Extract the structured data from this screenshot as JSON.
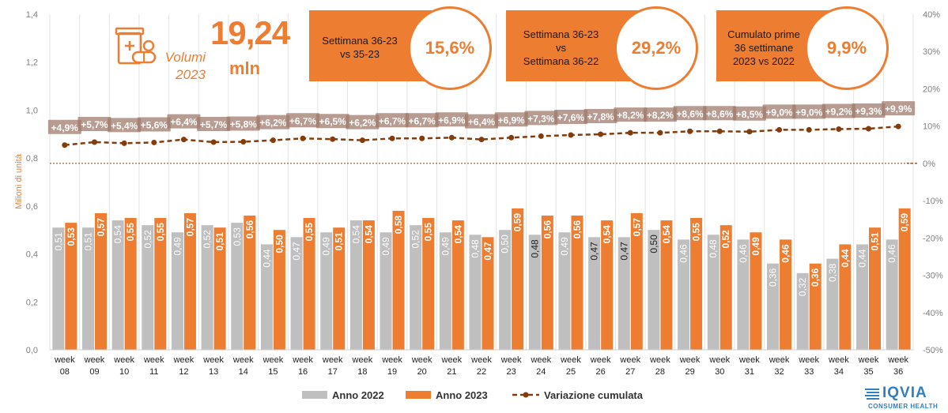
{
  "header": {
    "volume_value": "19,24",
    "volume_unit": "mln",
    "volume_label_line1": "Volumi",
    "volume_label_line2": "2023",
    "icon": "medicine-box-icon"
  },
  "kpis": [
    {
      "label_lines": [
        "Settimana 36-23",
        "vs 35-23"
      ],
      "value": "15,6%"
    },
    {
      "label_lines": [
        "Settimana 36-23",
        "vs",
        "Settimana 36-22"
      ],
      "value": "29,2%"
    },
    {
      "label_lines": [
        "Cumulato prime",
        "36 settimane",
        "2023 vs 2022"
      ],
      "value": "9,9%"
    }
  ],
  "logo": {
    "name": "IQVIA",
    "sub": "CONSUMER HEALTH"
  },
  "colors": {
    "series_2022": "#bfbfbf",
    "series_2023": "#ed7d31",
    "line": "#843c0c",
    "accent": "#ed7d31"
  },
  "chart_data": {
    "type": "bar",
    "ylabel": "Milioni di unità",
    "ylim": [
      0,
      1.4
    ],
    "y_ticks": [
      "0,0",
      "0,2",
      "0,4",
      "0,6",
      "0,8",
      "1,0",
      "1,2",
      "1,4"
    ],
    "y2lim": [
      -50,
      40
    ],
    "y2_ticks": [
      "-50%",
      "-40%",
      "-30%",
      "-20%",
      "-10%",
      "0%",
      "10%",
      "20%",
      "30%",
      "40%"
    ],
    "categories": [
      [
        "week",
        "08"
      ],
      [
        "week",
        "09"
      ],
      [
        "week",
        "10"
      ],
      [
        "week",
        "11"
      ],
      [
        "week",
        "12"
      ],
      [
        "week",
        "13"
      ],
      [
        "week",
        "14"
      ],
      [
        "week",
        "15"
      ],
      [
        "week",
        "16"
      ],
      [
        "week",
        "17"
      ],
      [
        "week",
        "18"
      ],
      [
        "week",
        "19"
      ],
      [
        "week",
        "20"
      ],
      [
        "week",
        "21"
      ],
      [
        "week",
        "22"
      ],
      [
        "week",
        "23"
      ],
      [
        "week",
        "24"
      ],
      [
        "week",
        "25"
      ],
      [
        "week",
        "26"
      ],
      [
        "week",
        "27"
      ],
      [
        "week",
        "28"
      ],
      [
        "week",
        "29"
      ],
      [
        "week",
        "30"
      ],
      [
        "week",
        "31"
      ],
      [
        "week",
        "32"
      ],
      [
        "week",
        "33"
      ],
      [
        "week",
        "34"
      ],
      [
        "week",
        "35"
      ],
      [
        "week",
        "36"
      ]
    ],
    "series": [
      {
        "name": "Anno 2022",
        "values": [
          0.51,
          0.51,
          0.54,
          0.52,
          0.49,
          0.52,
          0.53,
          0.44,
          0.47,
          0.49,
          0.54,
          0.49,
          0.52,
          0.49,
          0.48,
          0.5,
          0.48,
          0.49,
          0.47,
          0.47,
          0.5,
          0.46,
          0.48,
          0.46,
          0.36,
          0.32,
          0.38,
          0.44,
          0.46
        ],
        "labels": [
          "0,51",
          "0,51",
          "0,54",
          "0,52",
          "0,49",
          "0,52",
          "0,53",
          "0,44",
          "0,47",
          "0,49",
          "0,54",
          "0,49",
          "0,52",
          "0,49",
          "0,48",
          "0,50",
          "0,48",
          "0,49",
          "0,47",
          "0,47",
          "0,50",
          "0,46",
          "0,48",
          "0,46",
          "0,36",
          "0,32",
          "0,38",
          "0,44",
          "0,46"
        ]
      },
      {
        "name": "Anno 2023",
        "values": [
          0.53,
          0.57,
          0.55,
          0.55,
          0.57,
          0.51,
          0.56,
          0.5,
          0.55,
          0.51,
          0.54,
          0.58,
          0.55,
          0.54,
          0.47,
          0.59,
          0.56,
          0.56,
          0.54,
          0.57,
          0.54,
          0.55,
          0.52,
          0.49,
          0.46,
          0.36,
          0.44,
          0.51,
          0.59
        ],
        "labels": [
          "0,53",
          "0,57",
          "0,55",
          "0,55",
          "0,57",
          "0,51",
          "0,56",
          "0,50",
          "0,55",
          "0,51",
          "0,54",
          "0,58",
          "0,55",
          "0,54",
          "0,47",
          "0,59",
          "0,56",
          "0,56",
          "0,54",
          "0,57",
          "0,54",
          "0,55",
          "0,52",
          "0,49",
          "0,46",
          "0,36",
          "0,44",
          "0,51",
          "0,59"
        ]
      },
      {
        "name": "Variazione cumulata",
        "axis": "right",
        "values": [
          4.9,
          5.7,
          5.4,
          5.6,
          6.4,
          5.7,
          5.8,
          6.2,
          6.7,
          6.5,
          6.2,
          6.7,
          6.7,
          6.9,
          6.4,
          6.9,
          7.3,
          7.6,
          7.8,
          8.2,
          8.2,
          8.6,
          8.6,
          8.5,
          9.0,
          9.0,
          9.2,
          9.3,
          9.9
        ],
        "labels": [
          "+4,9%",
          "+5,7%",
          "+5,4%",
          "+5,6%",
          "+6,4%",
          "+5,7%",
          "+5,8%",
          "+6,2%",
          "+6,7%",
          "+6,5%",
          "+6,2%",
          "+6,7%",
          "+6,7%",
          "+6,9%",
          "+6,4%",
          "+6,9%",
          "+7,3%",
          "+7,6%",
          "+7,8%",
          "+8,2%",
          "+8,2%",
          "+8,6%",
          "+8,6%",
          "+8,5%",
          "+9,0%",
          "+9,0%",
          "+9,2%",
          "+9,3%",
          "+9,9%"
        ]
      }
    ],
    "grid": true,
    "legend": "bottom"
  }
}
